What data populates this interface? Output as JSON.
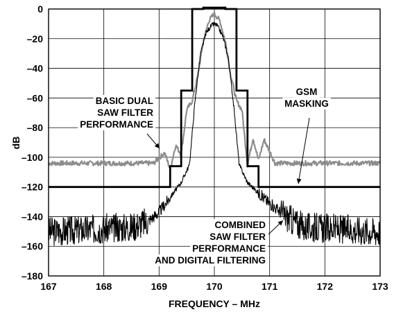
{
  "chart_data": {
    "type": "line",
    "title": "",
    "xlabel": "FREQUENCY – MHz",
    "ylabel": "dB",
    "xlim": [
      167,
      173
    ],
    "ylim": [
      -180,
      0
    ],
    "x_ticks": [
      "167",
      "168",
      "169",
      "170",
      "171",
      "172",
      "173"
    ],
    "y_ticks": [
      "0",
      "–20",
      "–40",
      "–60",
      "–80",
      "–100",
      "–120",
      "–140",
      "–160",
      "–180"
    ],
    "grid": true,
    "colors": {
      "gsm": "#000000",
      "saw": "#8c8c8c",
      "combined": "#000000"
    },
    "series": [
      {
        "key": "gsm",
        "x": [
          167,
          169.2,
          169.2,
          169.4,
          169.4,
          169.6,
          169.6,
          169.8,
          169.8,
          170.2,
          170.2,
          170.4,
          170.4,
          170.6,
          170.6,
          170.8,
          170.8,
          173
        ],
        "y": [
          -120,
          -120,
          -106,
          -106,
          -55,
          -55,
          0,
          0,
          10,
          10,
          0,
          0,
          -55,
          -55,
          -106,
          -106,
          -120,
          -120
        ]
      },
      {
        "key": "saw",
        "x": [
          167,
          168.9,
          169.1,
          169.2,
          169.3,
          169.4,
          169.5,
          169.6,
          169.7,
          169.8,
          169.9,
          170,
          170.1,
          170.2,
          170.3,
          170.4,
          170.5,
          170.6,
          170.7,
          170.8,
          170.9,
          171.1,
          173
        ],
        "y": [
          -104,
          -104,
          -97,
          -108,
          -92,
          -98,
          -68,
          -62,
          -45,
          -22,
          -8,
          -3,
          -8,
          -22,
          -45,
          -62,
          -68,
          -105,
          -87,
          -102,
          -88,
          -104,
          -104
        ]
      },
      {
        "key": "combined",
        "x": [
          167,
          168.5,
          168.8,
          169.0,
          169.2,
          169.4,
          169.55,
          169.65,
          169.75,
          169.85,
          169.95,
          170,
          170.05,
          170.15,
          170.25,
          170.35,
          170.45,
          170.6,
          170.8,
          171.0,
          171.3,
          171.6,
          173
        ],
        "y": [
          -150,
          -147,
          -143,
          -137,
          -127,
          -117,
          -105,
          -62,
          -30,
          -16,
          -11,
          -10,
          -11,
          -18,
          -32,
          -65,
          -105,
          -117,
          -124,
          -131,
          -140,
          -147,
          -150
        ]
      }
    ],
    "annotations": {
      "saw_lines": [
        "BASIC DUAL",
        "SAW FILTER",
        "PERFORMANCE"
      ],
      "gsm_lines": [
        "GSM",
        "MASKING"
      ],
      "combined_lines": [
        "COMBINED",
        "SAW FILTER",
        "PERFORMANCE",
        "AND DIGITAL FILTERING"
      ]
    }
  }
}
